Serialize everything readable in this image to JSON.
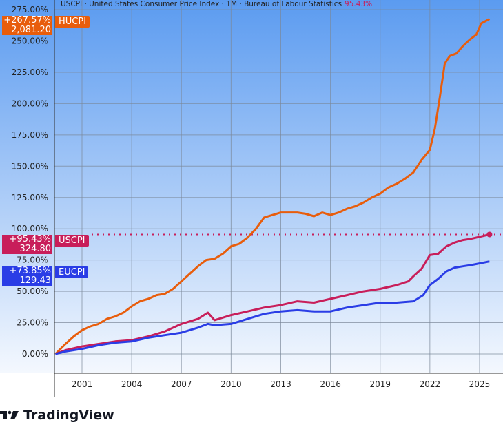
{
  "legend": {
    "text": "USCPI · United States Consumer Price Index · 1M · Bureau of Labour Statistics",
    "value": "95.43%"
  },
  "brand": {
    "name": "TradingView"
  },
  "labels": {
    "HUCPI": {
      "pct": "+267.57%",
      "value": "2,081.20",
      "name": "HUCPI",
      "color": "#e85d0c"
    },
    "USCPI": {
      "pct": "+95.43%",
      "value": "324.80",
      "name": "USCPI",
      "color": "#c81e5a"
    },
    "EUCPI": {
      "pct": "+73.85%",
      "value": "129.43",
      "name": "EUCPI",
      "color": "#2a3de6"
    }
  },
  "chart_data": {
    "type": "line",
    "yscale": "percent",
    "ylim": [
      -10,
      275
    ],
    "xlim": [
      1999.4,
      2026.2
    ],
    "grid": true,
    "y_ticks": [
      "0.00%",
      "25.00%",
      "50.00%",
      "75.00%",
      "100.00%",
      "125.00%",
      "150.00%",
      "175.00%",
      "200.00%",
      "225.00%",
      "250.00%",
      "275.00%"
    ],
    "x_ticks": [
      "2001",
      "2004",
      "2007",
      "2010",
      "2013",
      "2016",
      "2019",
      "2022",
      "2025"
    ],
    "series": [
      {
        "name": "HUCPI",
        "color": "#e85d0c",
        "points": [
          [
            1999.4,
            0
          ],
          [
            2000,
            8
          ],
          [
            2000.5,
            14
          ],
          [
            2001,
            19
          ],
          [
            2001.5,
            22
          ],
          [
            2002,
            24
          ],
          [
            2002.5,
            28
          ],
          [
            2003,
            30
          ],
          [
            2003.5,
            33
          ],
          [
            2004,
            38
          ],
          [
            2004.5,
            42
          ],
          [
            2005,
            44
          ],
          [
            2005.5,
            47
          ],
          [
            2006,
            48
          ],
          [
            2006.5,
            52
          ],
          [
            2007,
            58
          ],
          [
            2007.5,
            64
          ],
          [
            2008,
            70
          ],
          [
            2008.5,
            75
          ],
          [
            2009,
            76
          ],
          [
            2009.5,
            80
          ],
          [
            2010,
            86
          ],
          [
            2010.5,
            88
          ],
          [
            2011,
            93
          ],
          [
            2011.5,
            100
          ],
          [
            2012,
            109
          ],
          [
            2012.5,
            111
          ],
          [
            2013,
            113
          ],
          [
            2013.5,
            113
          ],
          [
            2014,
            113
          ],
          [
            2014.5,
            112
          ],
          [
            2015,
            110
          ],
          [
            2015.5,
            113
          ],
          [
            2016,
            111
          ],
          [
            2016.5,
            113
          ],
          [
            2017,
            116
          ],
          [
            2017.5,
            118
          ],
          [
            2018,
            121
          ],
          [
            2018.5,
            125
          ],
          [
            2019,
            128
          ],
          [
            2019.5,
            133
          ],
          [
            2020,
            136
          ],
          [
            2020.5,
            140
          ],
          [
            2021,
            145
          ],
          [
            2021.5,
            155
          ],
          [
            2022,
            163
          ],
          [
            2022.3,
            180
          ],
          [
            2022.6,
            205
          ],
          [
            2022.9,
            232
          ],
          [
            2023.2,
            238
          ],
          [
            2023.6,
            240
          ],
          [
            2024,
            246
          ],
          [
            2024.4,
            251
          ],
          [
            2024.8,
            255
          ],
          [
            2025.1,
            264
          ],
          [
            2025.6,
            267.57
          ]
        ]
      },
      {
        "name": "USCPI",
        "color": "#c81e5a",
        "points": [
          [
            1999.4,
            0
          ],
          [
            2000,
            3
          ],
          [
            2001,
            6
          ],
          [
            2002,
            8
          ],
          [
            2003,
            10
          ],
          [
            2004,
            11
          ],
          [
            2005,
            14
          ],
          [
            2006,
            18
          ],
          [
            2007,
            24
          ],
          [
            2008,
            28
          ],
          [
            2008.6,
            33
          ],
          [
            2009,
            27
          ],
          [
            2010,
            31
          ],
          [
            2011,
            34
          ],
          [
            2012,
            37
          ],
          [
            2013,
            39
          ],
          [
            2014,
            42
          ],
          [
            2015,
            41
          ],
          [
            2016,
            44
          ],
          [
            2017,
            47
          ],
          [
            2018,
            50
          ],
          [
            2019,
            52
          ],
          [
            2020,
            55
          ],
          [
            2020.7,
            58
          ],
          [
            2021,
            62
          ],
          [
            2021.5,
            68
          ],
          [
            2022,
            79
          ],
          [
            2022.5,
            80
          ],
          [
            2023,
            86
          ],
          [
            2023.5,
            89
          ],
          [
            2024,
            91
          ],
          [
            2024.5,
            92
          ],
          [
            2025.6,
            95.43
          ]
        ]
      },
      {
        "name": "EUCPI",
        "color": "#2a3de6",
        "points": [
          [
            1999.4,
            0
          ],
          [
            2000,
            2
          ],
          [
            2001,
            4
          ],
          [
            2002,
            7
          ],
          [
            2003,
            9
          ],
          [
            2004,
            10
          ],
          [
            2005,
            13
          ],
          [
            2006,
            15
          ],
          [
            2007,
            17
          ],
          [
            2008,
            21
          ],
          [
            2008.6,
            24
          ],
          [
            2009,
            23
          ],
          [
            2010,
            24
          ],
          [
            2011,
            28
          ],
          [
            2012,
            32
          ],
          [
            2013,
            34
          ],
          [
            2014,
            35
          ],
          [
            2015,
            34
          ],
          [
            2016,
            34
          ],
          [
            2017,
            37
          ],
          [
            2018,
            39
          ],
          [
            2019,
            41
          ],
          [
            2020,
            41
          ],
          [
            2021,
            42
          ],
          [
            2021.6,
            47
          ],
          [
            2022,
            55
          ],
          [
            2022.5,
            60
          ],
          [
            2023,
            66
          ],
          [
            2023.5,
            69
          ],
          [
            2024,
            70
          ],
          [
            2024.5,
            71
          ],
          [
            2025.6,
            73.85
          ]
        ]
      }
    ]
  }
}
